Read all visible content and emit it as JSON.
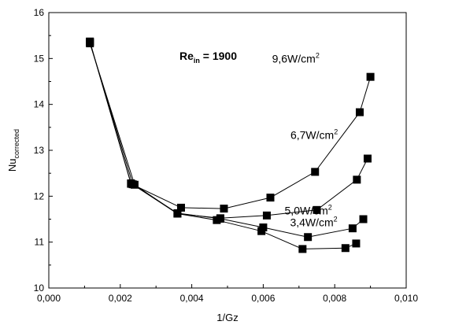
{
  "chart_data": {
    "type": "line",
    "xlabel": "1/Gz",
    "ylabel": {
      "main": "Nu",
      "sub": "corrected"
    },
    "xlim": [
      0.0,
      0.01
    ],
    "ylim": [
      10,
      16
    ],
    "x_ticks": [
      "0,000",
      "0,002",
      "0,004",
      "0,006",
      "0,008",
      "0,010"
    ],
    "y_ticks": [
      "10",
      "11",
      "12",
      "13",
      "14",
      "15",
      "16"
    ],
    "grid": false,
    "marker": "square",
    "annotation": {
      "main": "Re",
      "sub": "in",
      "rest": " = 1900"
    },
    "series": [
      {
        "name": "9,6W/cm",
        "sup": "2",
        "x": [
          0.00115,
          0.0023,
          0.0037,
          0.0049,
          0.0062,
          0.00745,
          0.0087,
          0.009
        ],
        "y": [
          15.37,
          12.27,
          11.75,
          11.73,
          11.97,
          12.53,
          13.83,
          14.6
        ]
      },
      {
        "name": "6,7W/cm",
        "sup": "2",
        "x": [
          0.00115,
          0.0023,
          0.0036,
          0.0048,
          0.0061,
          0.0075,
          0.00862,
          0.00892
        ],
        "y": [
          15.36,
          12.28,
          11.62,
          11.52,
          11.58,
          11.7,
          12.36,
          12.82
        ]
      },
      {
        "name": "5,0W/cm",
        "sup": "2",
        "x": [
          0.00115,
          0.00235,
          0.0036,
          0.0048,
          0.006,
          0.00725,
          0.0085,
          0.0088
        ],
        "y": [
          15.35,
          12.26,
          11.63,
          11.51,
          11.32,
          11.11,
          11.3,
          11.5
        ]
      },
      {
        "name": "3,4W/cm",
        "sup": "2",
        "x": [
          0.00115,
          0.0024,
          0.0036,
          0.0047,
          0.00595,
          0.0071,
          0.0083,
          0.0086
        ],
        "y": [
          15.33,
          12.25,
          11.62,
          11.48,
          11.24,
          10.85,
          10.87,
          10.97
        ]
      }
    ]
  }
}
